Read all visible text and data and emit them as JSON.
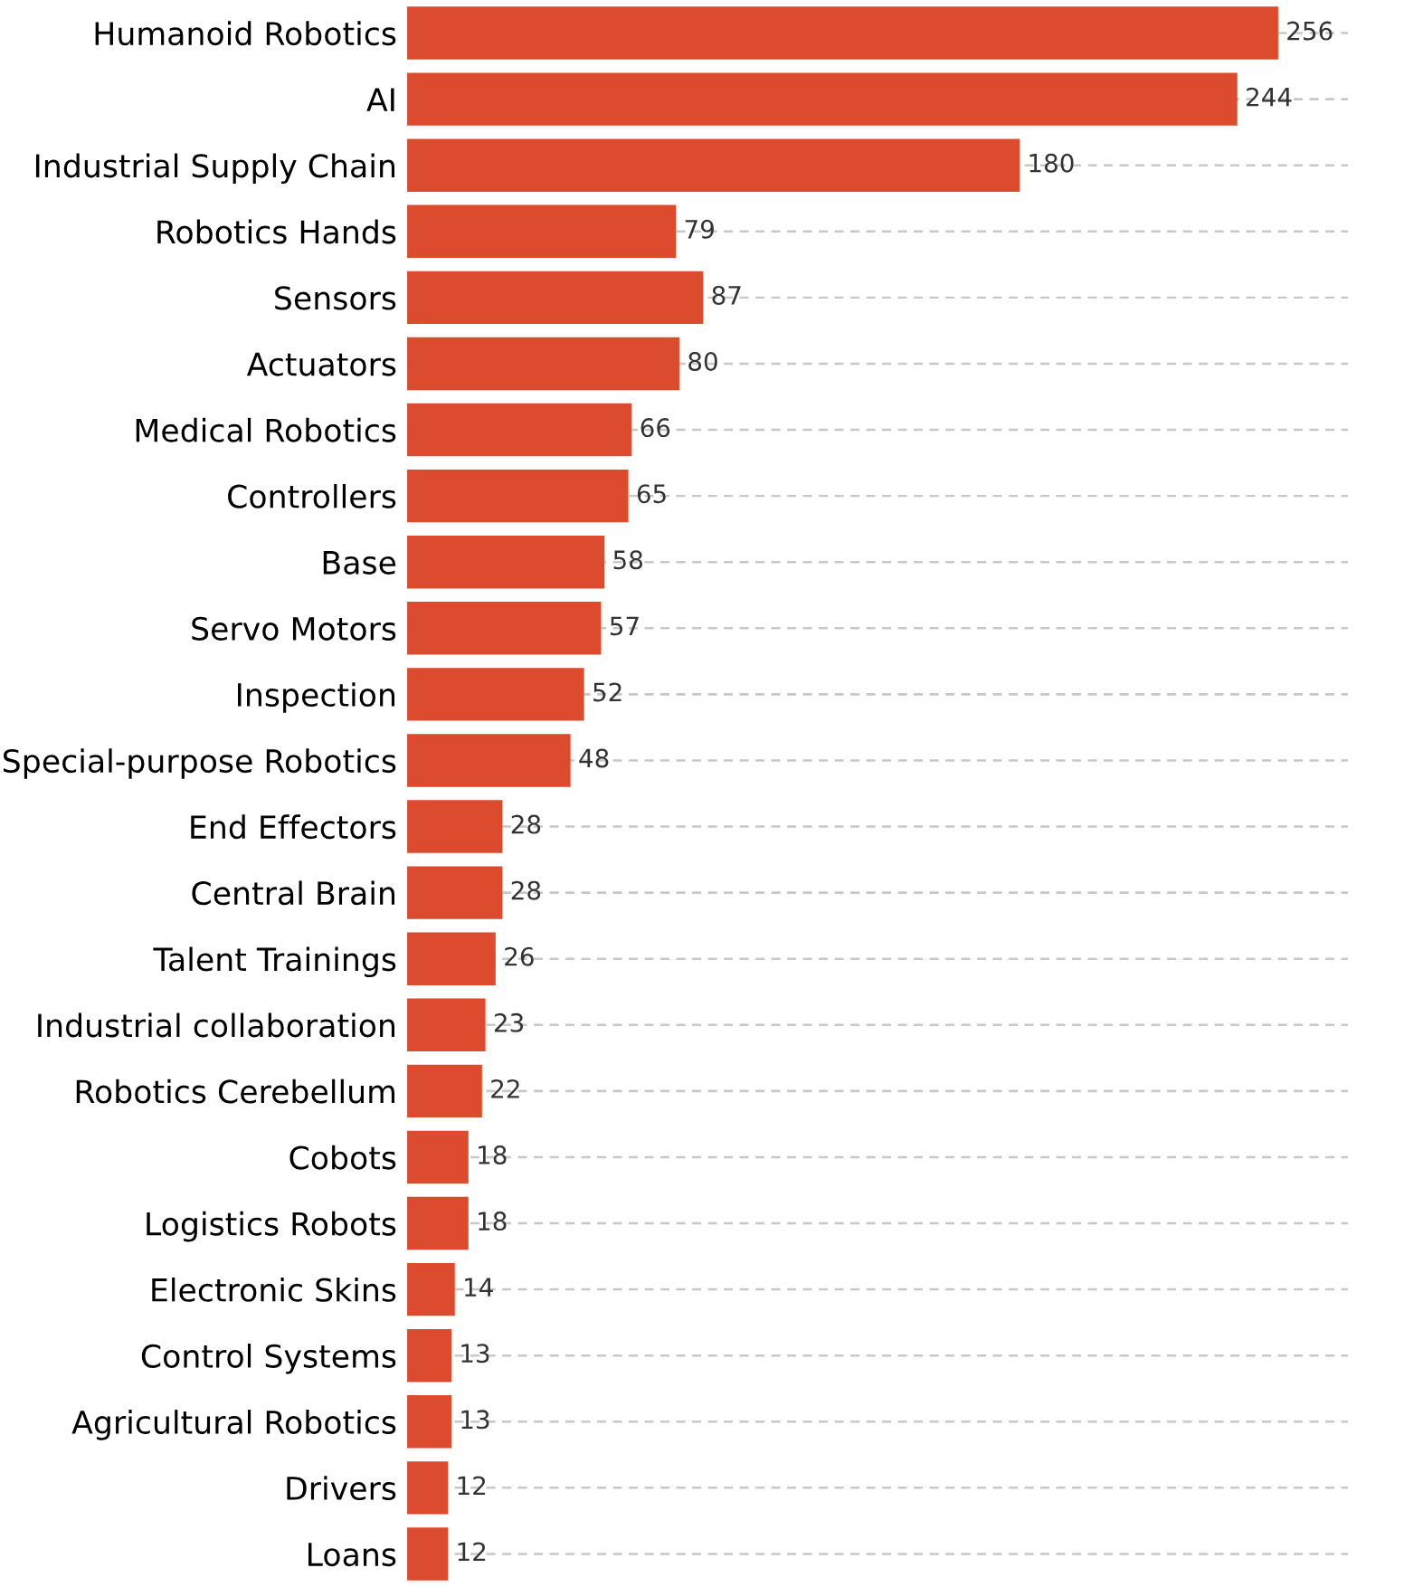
{
  "chart_data": {
    "type": "bar",
    "orientation": "horizontal",
    "categories": [
      "Humanoid Robotics",
      "AI",
      "Industrial Supply Chain",
      "Robotics Hands",
      "Sensors",
      "Actuators",
      "Medical Robotics",
      "Controllers",
      "Base",
      "Servo Motors",
      "Inspection",
      "Special-purpose Robotics",
      "End Effectors",
      "Central Brain",
      "Talent Trainings",
      "Industrial collaboration",
      "Robotics Cerebellum",
      "Cobots",
      "Logistics Robots",
      "Electronic Skins",
      "Control Systems",
      "Agricultural Robotics",
      "Drivers",
      "Loans"
    ],
    "values": [
      256,
      244,
      180,
      79,
      87,
      80,
      66,
      65,
      58,
      57,
      52,
      48,
      28,
      28,
      26,
      23,
      22,
      18,
      18,
      14,
      13,
      13,
      12,
      12
    ],
    "color": "#dc4b2d",
    "data_labels": true,
    "grid": "y",
    "tick_labels": "y"
  }
}
